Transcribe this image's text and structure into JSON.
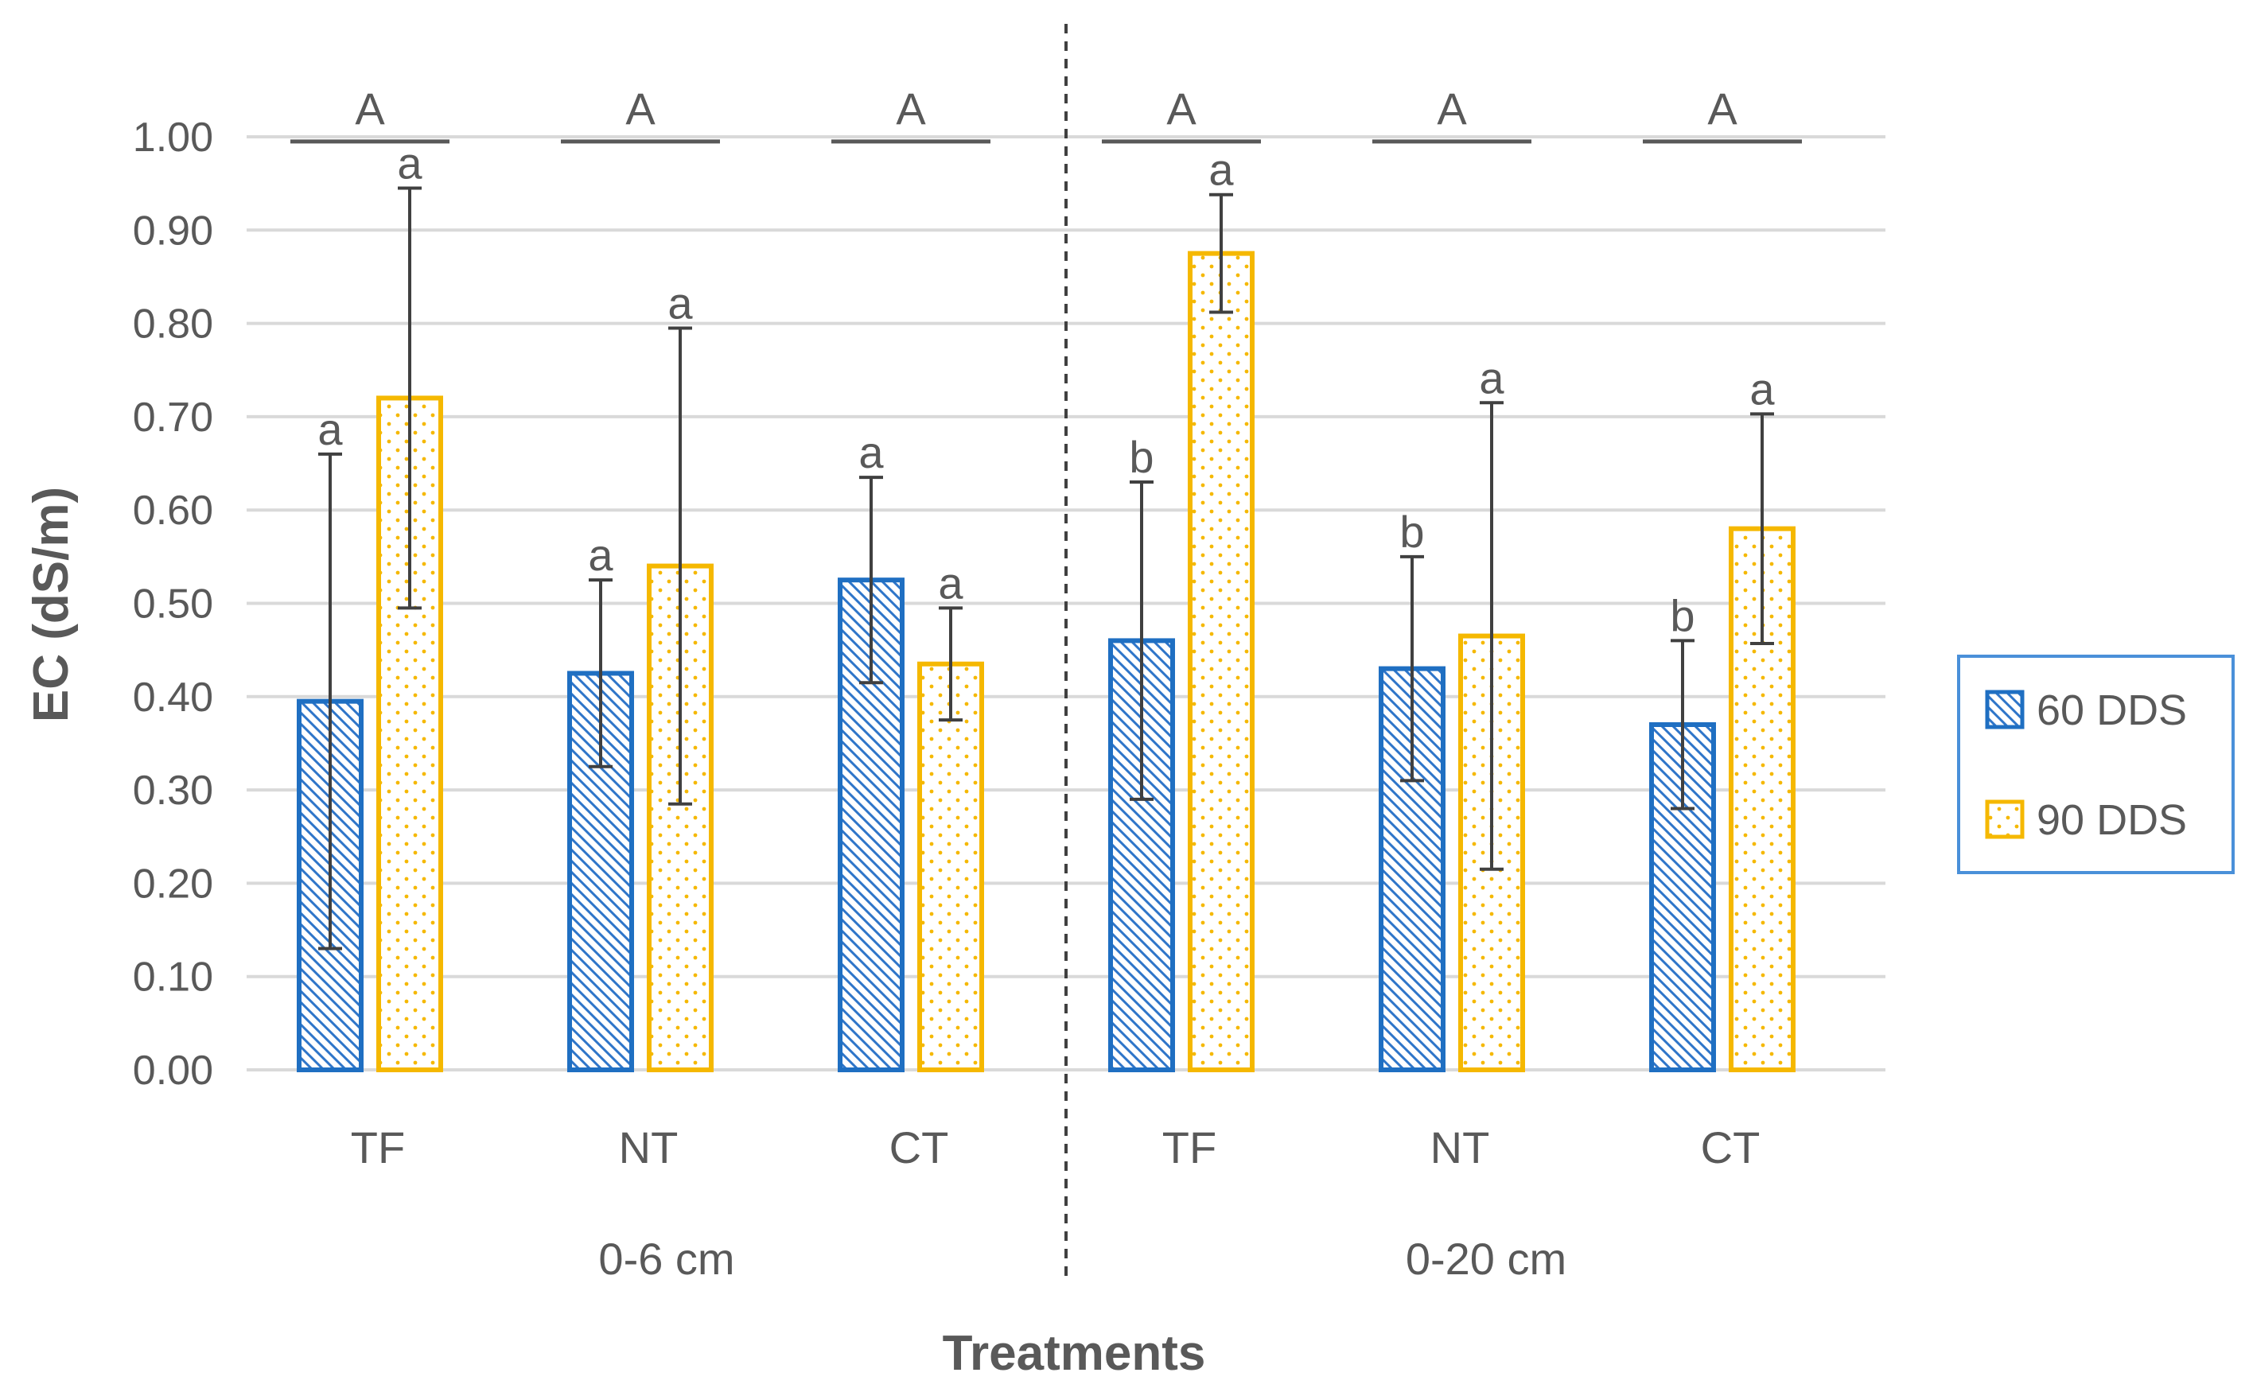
{
  "chart_data": {
    "type": "bar",
    "title": "",
    "xlabel": "Treatments",
    "ylabel": "EC (dS/m)",
    "ylim": [
      0,
      1.0
    ],
    "ytick_step": 0.1,
    "yticks": [
      "0.00",
      "0.10",
      "0.20",
      "0.30",
      "0.40",
      "0.50",
      "0.60",
      "0.70",
      "0.80",
      "0.90",
      "1.00"
    ],
    "grid": true,
    "legend_position": "right",
    "categories": [
      "TF",
      "NT",
      "CT",
      "TF",
      "NT",
      "CT"
    ],
    "groups": [
      {
        "label": "0-6 cm",
        "categories": [
          "TF",
          "NT",
          "CT"
        ]
      },
      {
        "label": "0-20 cm",
        "categories": [
          "TF",
          "NT",
          "CT"
        ]
      }
    ],
    "series": [
      {
        "name": "60 DDS",
        "color": "#1f6fc2",
        "pattern": "diagonal-hatch",
        "values": [
          0.395,
          0.425,
          0.525,
          0.46,
          0.43,
          0.37
        ],
        "error": [
          0.265,
          0.1,
          0.11,
          0.17,
          0.12,
          0.09
        ],
        "letters": [
          "a",
          "a",
          "a",
          "b",
          "b",
          "b"
        ]
      },
      {
        "name": "90 DDS",
        "color": "#f5b800",
        "pattern": "dots",
        "values": [
          0.72,
          0.54,
          0.435,
          0.875,
          0.465,
          0.58
        ],
        "error": [
          0.225,
          0.255,
          0.06,
          0.063,
          0.25,
          0.123
        ],
        "letters": [
          "a",
          "a",
          "a",
          "a",
          "a",
          "a"
        ]
      }
    ],
    "group_letters": [
      "A",
      "A",
      "A",
      "A",
      "A",
      "A"
    ],
    "group_line_value": 0.995
  }
}
